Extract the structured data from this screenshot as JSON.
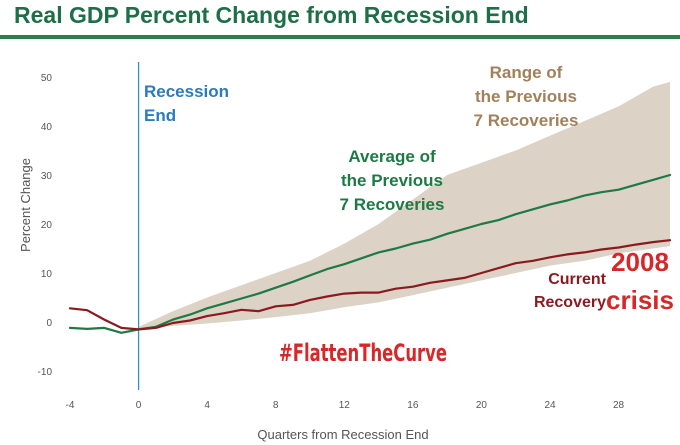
{
  "title": "Real GDP Percent Change from Recession End",
  "chart_data": {
    "type": "line",
    "title": "Real GDP Percent Change from Recession End",
    "xlabel": "Quarters from Recession End",
    "ylabel": "Percent Change",
    "xlim": [
      -4,
      31
    ],
    "ylim": [
      -10,
      50
    ],
    "xticks": [
      -4,
      0,
      4,
      8,
      12,
      16,
      20,
      24,
      28
    ],
    "yticks": [
      -10,
      0,
      10,
      20,
      30,
      40,
      50
    ],
    "xtick_labels": [
      "-4",
      "0",
      "4",
      "8",
      "12",
      "16",
      "20",
      "24",
      "28"
    ],
    "ytick_labels": [
      "-10",
      "0",
      "10",
      "20",
      "30",
      "40",
      "50"
    ],
    "recession_end_x": 0,
    "series": [
      {
        "name": "Average of the Previous 7 Recoveries",
        "color": "#1e7a45",
        "x": [
          -4,
          -3,
          -2,
          -1,
          0,
          1,
          2,
          3,
          4,
          5,
          6,
          7,
          8,
          9,
          10,
          11,
          12,
          13,
          14,
          15,
          16,
          17,
          18,
          19,
          20,
          21,
          22,
          23,
          24,
          25,
          26,
          27,
          28,
          29,
          30,
          31
        ],
        "values": [
          -1.2,
          -1.4,
          -1.2,
          -2.2,
          -1.5,
          -1.0,
          0.5,
          1.5,
          2.8,
          3.8,
          4.8,
          5.8,
          7.0,
          8.2,
          9.5,
          10.8,
          11.8,
          13.0,
          14.2,
          15.0,
          16.0,
          16.8,
          18.0,
          19.0,
          20.0,
          20.8,
          22.0,
          23.0,
          24.0,
          24.8,
          25.8,
          26.5,
          27.0,
          28.0,
          29.0,
          30.0
        ]
      },
      {
        "name": "Current Recovery",
        "color": "#8b1a1f",
        "x": [
          -4,
          -3,
          -2,
          -1,
          0,
          1,
          2,
          3,
          4,
          5,
          6,
          7,
          8,
          9,
          10,
          11,
          12,
          13,
          14,
          15,
          16,
          17,
          18,
          19,
          20,
          21,
          22,
          23,
          24,
          25,
          26,
          27,
          28,
          29,
          30,
          31
        ],
        "values": [
          2.8,
          2.4,
          0.5,
          -1.2,
          -1.5,
          -1.2,
          -0.2,
          0.3,
          1.2,
          1.8,
          2.5,
          2.2,
          3.2,
          3.5,
          4.5,
          5.2,
          5.8,
          6.0,
          6.0,
          6.8,
          7.2,
          8.0,
          8.5,
          9.0,
          10.0,
          11.0,
          12.0,
          12.5,
          13.2,
          13.8,
          14.2,
          14.8,
          15.2,
          15.8,
          16.3,
          16.7
        ]
      }
    ],
    "range_band": {
      "name": "Range of the Previous 7 Recoveries",
      "color": "#d5c7b8",
      "x": [
        0,
        2,
        4,
        6,
        8,
        10,
        12,
        14,
        16,
        18,
        20,
        22,
        24,
        26,
        28,
        30,
        31
      ],
      "low": [
        -1.5,
        -0.8,
        -0.3,
        0.3,
        1.0,
        1.8,
        3.0,
        4.0,
        5.5,
        7.0,
        8.5,
        10.0,
        11.5,
        12.5,
        14.0,
        15.0,
        15.5
      ],
      "high": [
        -1.0,
        2.2,
        5.0,
        7.5,
        10.0,
        12.5,
        16.0,
        20.0,
        25.0,
        30.0,
        32.5,
        35.0,
        38.0,
        41.0,
        44.0,
        48.0,
        49.0
      ]
    },
    "annotations": {
      "recession_end": [
        "Recession",
        "End"
      ],
      "range": [
        "Range of",
        "the Previous",
        "7 Recoveries"
      ],
      "average": [
        "Average of",
        "the Previous",
        "7 Recoveries"
      ],
      "current": [
        "Current",
        "Recovery"
      ],
      "crisis": [
        "2008",
        "crisis"
      ],
      "hashtag": "#FlattenTheCurve"
    },
    "colors": {
      "title": "#1e6f47",
      "recession_line": "#3b8fc8",
      "recession_label": "#2b7bc0",
      "range_label": "#a2805a",
      "average_label": "#1e7a45",
      "current_label": "#8b1a1f",
      "crisis_label": "#d62828",
      "hashtag": "#d62828"
    },
    "grid": false
  }
}
